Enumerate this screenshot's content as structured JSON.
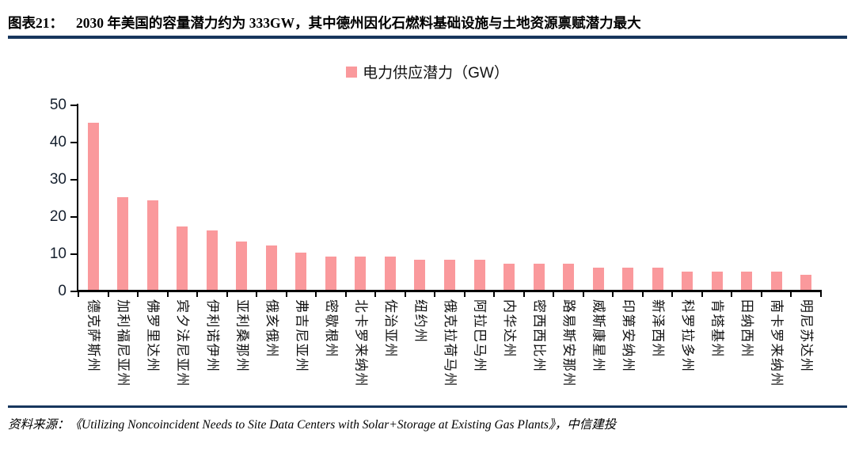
{
  "header": {
    "label": "图表21：",
    "title": "2030 年美国的容量潜力约为 333GW，其中德州因化石燃料基础设施与土地资源禀赋潜力最大"
  },
  "legend": {
    "label": "电力供应潜力（GW）"
  },
  "chart_data": {
    "type": "bar",
    "title": "",
    "series_name": "电力供应潜力（GW）",
    "categories": [
      "德克萨斯州",
      "加利福尼亚州",
      "佛罗里达州",
      "宾夕法尼亚州",
      "伊利诺伊州",
      "亚利桑那州",
      "俄亥俄州",
      "弗吉尼亚州",
      "密歇根州",
      "北卡罗来纳州",
      "佐治亚州",
      "纽约州",
      "俄克拉荷马州",
      "阿拉巴马州",
      "内华达州",
      "密西西比州",
      "路易斯安那州",
      "威斯康星州",
      "印第安纳州",
      "新泽西州",
      "科罗拉多州",
      "肯塔基州",
      "田纳西州",
      "南卡罗来纳州",
      "明尼苏达州"
    ],
    "values": [
      45,
      25,
      24,
      17,
      16,
      13,
      12,
      10,
      9,
      9,
      9,
      8,
      8,
      8,
      7,
      7,
      7,
      6,
      6,
      6,
      5,
      5,
      5,
      5,
      4
    ],
    "xlabel": "",
    "ylabel": "",
    "ylim": [
      0,
      50
    ],
    "yticks": [
      0,
      10,
      20,
      30,
      40,
      50
    ],
    "grid": false,
    "legend_position": "top",
    "bar_color": "#FA999C",
    "axis_color": "#000000"
  },
  "footer": {
    "source": "资料来源：《Utilizing Noncoincident Needs to Site Data Centers with Solar+Storage at Existing Gas Plants》，中信建投"
  },
  "colors": {
    "accent_rule": "#17365D",
    "bar": "#FA999C"
  }
}
